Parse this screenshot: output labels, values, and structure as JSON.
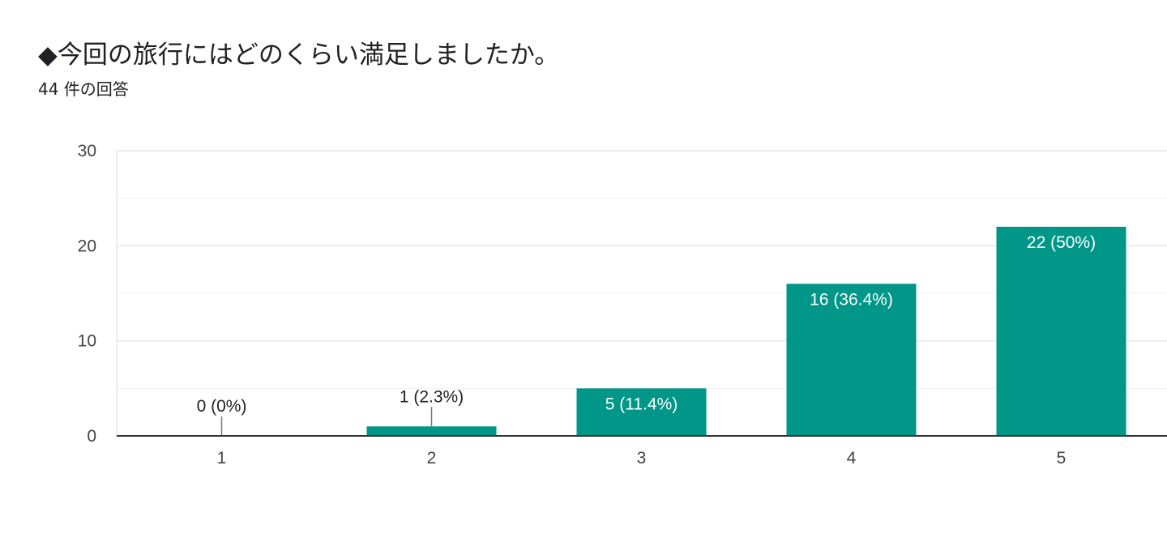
{
  "header": {
    "title": "◆今回の旅行にはどのくらい満足しましたか。",
    "response_count": "44 件の回答"
  },
  "colors": {
    "bar": "#009688",
    "gridline": "#e8e8e8",
    "baseline": "#333333"
  },
  "chart_data": {
    "type": "bar",
    "title": "◆今回の旅行にはどのくらい満足しましたか。",
    "xlabel": "",
    "ylabel": "",
    "categories": [
      "1",
      "2",
      "3",
      "4",
      "5"
    ],
    "values": [
      0,
      1,
      5,
      16,
      22
    ],
    "data_labels": [
      "0 (0%)",
      "1 (2.3%)",
      "5 (11.4%)",
      "16 (36.4%)",
      "22 (50%)"
    ],
    "y_ticks": [
      0,
      10,
      20,
      30
    ],
    "ylim": [
      0,
      30
    ],
    "grid": true,
    "legend": "none"
  }
}
